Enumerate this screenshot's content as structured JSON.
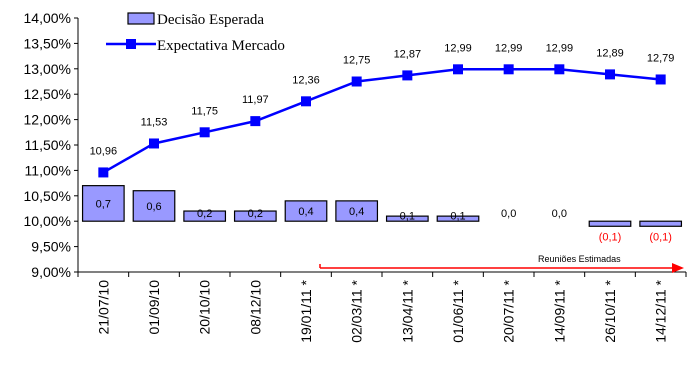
{
  "chart_data": {
    "type": "bar+line",
    "categories": [
      "21/07/10",
      "01/09/10",
      "20/10/10",
      "08/12/10",
      "19/01/11 *",
      "02/03/11 *",
      "13/04/11 *",
      "01/06/11 *",
      "20/07/11 *",
      "14/09/11 *",
      "26/10/11 *",
      "14/12/11 *"
    ],
    "y_ticks": [
      "9,00%",
      "9,50%",
      "10,00%",
      "10,50%",
      "11,00%",
      "11,50%",
      "12,00%",
      "12,50%",
      "13,00%",
      "13,50%",
      "14,00%"
    ],
    "ylim": [
      9.0,
      14.0
    ],
    "series": [
      {
        "name": "Decisão Esperada",
        "type": "bar",
        "baseline": 10.0,
        "values": [
          0.7,
          0.6,
          0.2,
          0.2,
          0.4,
          0.4,
          0.1,
          0.1,
          0.0,
          0.0,
          -0.1,
          -0.1
        ],
        "labels": [
          "0,7",
          "0,6",
          "0,2",
          "0,2",
          "0,4",
          "0,4",
          "0,1",
          "0,1",
          "0,0",
          "0,0",
          "(0,1)",
          "(0,1)"
        ],
        "fill": "#9999ff",
        "negative_label_color": "#ff0000"
      },
      {
        "name": "Expectativa Mercado",
        "type": "line",
        "values": [
          10.96,
          11.53,
          11.75,
          11.97,
          12.36,
          12.75,
          12.87,
          12.99,
          12.99,
          12.99,
          12.89,
          12.79
        ],
        "labels": [
          "10,96",
          "11,53",
          "11,75",
          "11,97",
          "12,36",
          "12,75",
          "12,87",
          "12,99",
          "12,99",
          "12,99",
          "12,89",
          "12,79"
        ],
        "color": "#0000ff"
      }
    ],
    "annotation": {
      "text": "Reuniões Estimadas",
      "from_category": 4,
      "color": "#ff0000"
    },
    "legend_position": "top-left",
    "grid": false
  }
}
